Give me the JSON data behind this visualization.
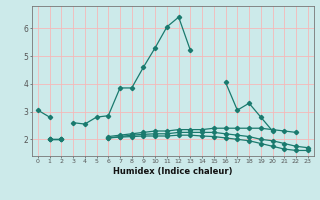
{
  "xlabel": "Humidex (Indice chaleur)",
  "x": [
    0,
    1,
    2,
    3,
    4,
    5,
    6,
    7,
    8,
    9,
    10,
    11,
    12,
    13,
    14,
    15,
    16,
    17,
    18,
    19,
    20,
    21,
    22,
    23
  ],
  "line1": [
    3.05,
    2.8,
    null,
    2.6,
    2.55,
    2.8,
    2.85,
    3.85,
    3.85,
    4.6,
    5.3,
    6.05,
    6.4,
    5.2,
    null,
    null,
    4.05,
    3.05,
    3.3,
    2.8,
    2.3,
    null,
    null,
    null
  ],
  "line2": [
    null,
    2.0,
    2.0,
    null,
    null,
    null,
    2.1,
    2.15,
    2.2,
    2.25,
    2.3,
    2.3,
    2.35,
    2.35,
    2.35,
    2.4,
    2.4,
    2.4,
    2.4,
    2.4,
    2.35,
    2.3,
    2.25,
    null
  ],
  "line3": [
    null,
    2.0,
    2.0,
    null,
    null,
    null,
    2.05,
    2.1,
    2.15,
    2.18,
    2.2,
    2.2,
    2.25,
    2.25,
    2.25,
    2.25,
    2.2,
    2.15,
    2.1,
    2.0,
    1.95,
    1.85,
    1.75,
    1.7
  ],
  "line4": [
    null,
    2.0,
    2.0,
    null,
    null,
    null,
    2.05,
    2.08,
    2.1,
    2.12,
    2.12,
    2.12,
    2.15,
    2.15,
    2.12,
    2.1,
    2.05,
    2.0,
    1.95,
    1.85,
    1.75,
    1.65,
    1.6,
    1.6
  ],
  "color": "#1a7a6e",
  "bg_color": "#cceaea",
  "grid_color": "#f5b8b8",
  "ylim": [
    1.4,
    6.8
  ],
  "xlim": [
    -0.5,
    23.5
  ],
  "yticks": [
    2,
    3,
    4,
    5,
    6
  ],
  "xticks": [
    0,
    1,
    2,
    3,
    4,
    5,
    6,
    7,
    8,
    9,
    10,
    11,
    12,
    13,
    14,
    15,
    16,
    17,
    18,
    19,
    20,
    21,
    22,
    23
  ]
}
